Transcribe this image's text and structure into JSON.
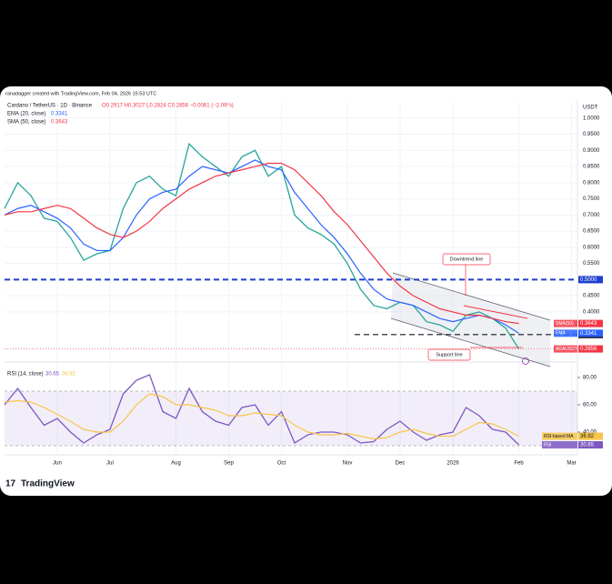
{
  "header": {
    "credit": "ranadagger created with TradingView.com, Feb 04, 2026 15:53 UTC",
    "symbol": "Cardano / TetherUS · 1D · Binance",
    "ohlc": "O0.2917 H0.3027 L0.2824 C0.2856 −0.0061 (−2.09%)",
    "currency": "USDT",
    "logo": "TradingView"
  },
  "chart_data": [
    {
      "type": "line",
      "categories": [
        null,
        null,
        null,
        null,
        "Jun",
        null,
        null,
        null,
        "Jul",
        null,
        null,
        null,
        null,
        "Aug",
        null,
        null,
        null,
        "Sep",
        null,
        null,
        null,
        "Oct",
        null,
        null,
        null,
        null,
        "Nov",
        null,
        null,
        null,
        "Dec",
        null,
        null,
        null,
        "2026",
        null,
        null,
        null,
        null,
        "Feb",
        null,
        null,
        null,
        "Mar"
      ],
      "series": [
        {
          "name": "ADAUSDT",
          "color": "#26a69a",
          "values": [
            0.72,
            0.8,
            0.76,
            0.69,
            0.68,
            0.63,
            0.56,
            0.58,
            0.59,
            0.72,
            0.8,
            0.82,
            0.78,
            0.76,
            0.92,
            0.88,
            0.85,
            0.82,
            0.88,
            0.9,
            0.82,
            0.85,
            0.7,
            0.66,
            0.64,
            0.61,
            0.55,
            0.47,
            0.42,
            0.41,
            0.43,
            0.42,
            0.37,
            0.36,
            0.34,
            0.39,
            0.4,
            0.38,
            0.35,
            0.2856,
            null,
            null,
            null,
            null
          ]
        },
        {
          "name": "EMA (20, close)",
          "color": "#2962ff",
          "values": [
            0.7,
            0.72,
            0.73,
            0.71,
            0.69,
            0.66,
            0.61,
            0.59,
            0.59,
            0.63,
            0.7,
            0.75,
            0.77,
            0.78,
            0.82,
            0.85,
            0.84,
            0.83,
            0.85,
            0.87,
            0.85,
            0.84,
            0.77,
            0.72,
            0.67,
            0.63,
            0.58,
            0.52,
            0.47,
            0.44,
            0.43,
            0.42,
            0.4,
            0.38,
            0.37,
            0.38,
            0.39,
            0.38,
            0.36,
            0.3341,
            null,
            null,
            null,
            null
          ]
        },
        {
          "name": "SMA (50, close)",
          "color": "#f23645",
          "values": [
            0.7,
            0.71,
            0.71,
            0.72,
            0.73,
            0.72,
            0.69,
            0.66,
            0.64,
            0.63,
            0.65,
            0.68,
            0.72,
            0.75,
            0.78,
            0.8,
            0.82,
            0.83,
            0.84,
            0.85,
            0.86,
            0.86,
            0.84,
            0.8,
            0.76,
            0.71,
            0.67,
            0.62,
            0.57,
            0.52,
            0.48,
            0.45,
            0.43,
            0.41,
            0.4,
            0.39,
            0.39,
            0.38,
            0.37,
            0.3643,
            null,
            null,
            null,
            null
          ]
        }
      ],
      "tags": [
        "SMA(50)",
        "EMA",
        "ADAUSDT"
      ],
      "ylim": [
        0.245,
        1.05
      ],
      "yticks": [
        {
          "value": 0.4,
          "label": "0.4000"
        },
        {
          "value": 0.45,
          "label": "0.4500"
        },
        {
          "value": 0.5,
          "label": "0.5000"
        },
        {
          "value": 0.55,
          "label": "0.5500"
        },
        {
          "value": 0.6,
          "label": "0.6000"
        },
        {
          "value": 0.65,
          "label": "0.6500"
        },
        {
          "value": 0.7,
          "label": "0.7000"
        },
        {
          "value": 0.75,
          "label": "0.7500"
        },
        {
          "value": 0.8,
          "label": "0.8000"
        },
        {
          "value": 0.85,
          "label": "0.8500"
        },
        {
          "value": 0.9,
          "label": "0.9000"
        },
        {
          "value": 0.95,
          "label": "0.9500"
        },
        {
          "value": 1,
          "label": "1.0000"
        }
      ],
      "levels": [
        {
          "value": 0.5,
          "label": "0.5000",
          "color": "#1e3fcf"
        },
        {
          "value": 0.33,
          "label": "0.3300",
          "color": "#131722"
        }
      ],
      "annotations": [
        "Downtrend line",
        "Support line"
      ]
    },
    {
      "type": "line",
      "title": "RSI (14, close)",
      "series": [
        {
          "name": "RSI",
          "color": "#7e57c2",
          "values": [
            60,
            72,
            58,
            45,
            50,
            40,
            32,
            38,
            42,
            68,
            78,
            82,
            55,
            50,
            72,
            55,
            48,
            45,
            58,
            60,
            45,
            55,
            32,
            38,
            40,
            40,
            38,
            32,
            33,
            42,
            48,
            40,
            34,
            38,
            40,
            58,
            52,
            42,
            40,
            30.65
          ]
        },
        {
          "name": "RSI-based MA",
          "color": "#f7c548",
          "values": [
            62,
            63,
            62,
            58,
            53,
            48,
            42,
            40,
            40,
            48,
            60,
            68,
            66,
            60,
            60,
            58,
            56,
            52,
            52,
            54,
            53,
            52,
            45,
            40,
            38,
            38,
            39,
            37,
            35,
            36,
            40,
            42,
            39,
            37,
            37,
            42,
            47,
            46,
            42,
            36.92
          ]
        }
      ],
      "ylim": [
        28,
        90
      ],
      "yticks": [
        {
          "value": 40,
          "label": "40.00"
        },
        {
          "value": 60,
          "label": "60.00"
        },
        {
          "value": 80,
          "label": "80.00"
        }
      ],
      "band": [
        30,
        70
      ]
    }
  ]
}
